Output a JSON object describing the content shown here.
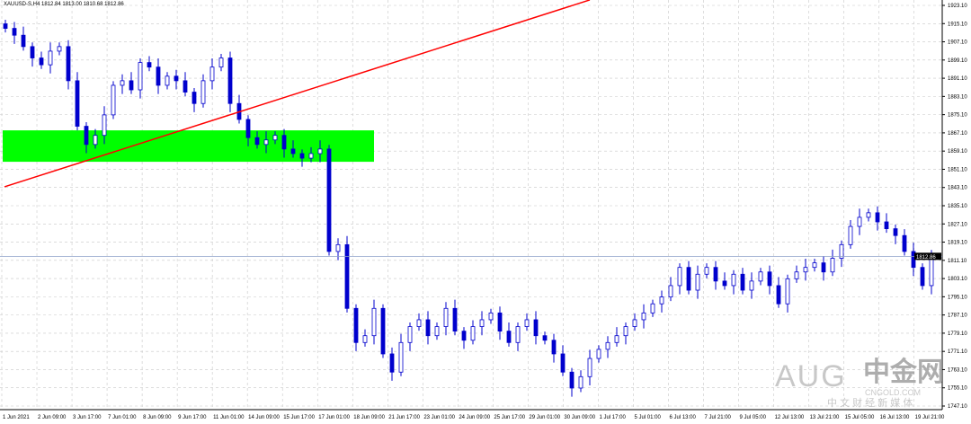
{
  "header": {
    "symbol_info": "XAUUSD-S,H4  1812.84 1813.00 1810.68 1812.86"
  },
  "chart_data": {
    "type": "candlestick",
    "yticks": [
      1923.1,
      1915.1,
      1907.1,
      1899.1,
      1891.1,
      1883.1,
      1875.1,
      1867.1,
      1859.1,
      1851.1,
      1843.1,
      1835.1,
      1827.1,
      1819.1,
      1811.1,
      1803.1,
      1795.1,
      1787.1,
      1779.1,
      1771.1,
      1763.1,
      1755.1,
      1747.1
    ],
    "ylim": [
      1747.1,
      1923.1
    ],
    "xtick_labels": [
      "1 Jun 2021",
      "2 Jun 09:00",
      "3 Jun 17:00",
      "7 Jun 01:00",
      "8 Jun 09:00",
      "9 Jun 17:00",
      "11 Jun 01:00",
      "14 Jun 09:00",
      "15 Jun 17:00",
      "17 Jun 01:00",
      "18 Jun 09:00",
      "21 Jun 17:00",
      "23 Jun 01:00",
      "24 Jun 09:00",
      "25 Jun 17:00",
      "29 Jun 01:00",
      "30 Jun 09:00",
      "1 Jul 17:00",
      "5 Jul 01:00",
      "6 Jul 13:00",
      "7 Jul 21:00",
      "9 Jul 05:00",
      "12 Jul 13:00",
      "13 Jul 21:00",
      "15 Jul 05:00",
      "16 Jul 13:00",
      "19 Jul 21:00"
    ],
    "current_price": 1812.86,
    "current_price_label": "1812.86",
    "closes": [
      1913,
      1910,
      1905,
      1900,
      1897,
      1903,
      1905,
      1890,
      1870,
      1862,
      1866,
      1875,
      1888,
      1890,
      1886,
      1898,
      1896,
      1888,
      1892,
      1890,
      1885,
      1880,
      1890,
      1896,
      1900,
      1880,
      1873,
      1865,
      1862,
      1864,
      1866,
      1860,
      1858,
      1856,
      1858,
      1860,
      1815,
      1818,
      1790,
      1775,
      1778,
      1790,
      1770,
      1762,
      1775,
      1782,
      1785,
      1778,
      1782,
      1790,
      1780,
      1776,
      1782,
      1785,
      1788,
      1780,
      1775,
      1782,
      1785,
      1778,
      1776,
      1770,
      1762,
      1755,
      1760,
      1768,
      1772,
      1775,
      1778,
      1782,
      1785,
      1788,
      1792,
      1795,
      1800,
      1808,
      1798,
      1805,
      1808,
      1802,
      1800,
      1805,
      1798,
      1802,
      1806,
      1800,
      1792,
      1803,
      1806,
      1808,
      1810,
      1806,
      1812,
      1818,
      1826,
      1830,
      1832,
      1828,
      1825,
      1822,
      1815,
      1808,
      1800,
      1812.86
    ],
    "trendline": {
      "from": {
        "index": 0,
        "price": 1843.4
      },
      "to": {
        "index": 65,
        "price": 1925.5
      },
      "color": "#ff0000"
    },
    "zone": {
      "from_index": 0,
      "to_index": 41,
      "price_high": 1868.2,
      "price_low": 1854.4,
      "color": "#00ff00"
    },
    "candle_color": "#0000cd",
    "grid": true
  },
  "watermark": {
    "brand": "AUG",
    "logo_text": "中金网",
    "logo_url_text": "CNGOLD.COM",
    "tagline": "中 文 财 经 新 媒 体"
  }
}
